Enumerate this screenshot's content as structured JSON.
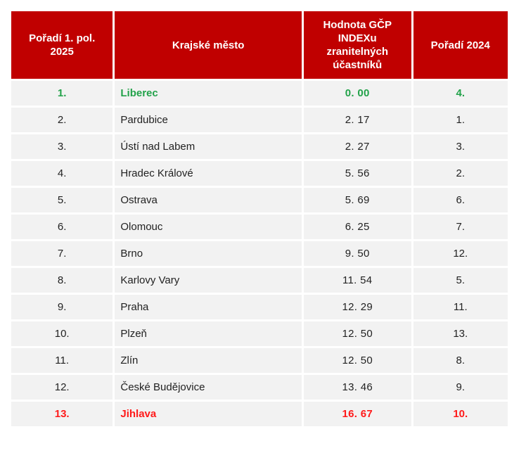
{
  "header": {
    "rank_2025": "Pořadí 1. pol. 2025",
    "city": "Krajské město",
    "index": "Hodnota GČP INDEXu zranitelných účastníků",
    "rank_2024": "Pořadí 2024"
  },
  "rows": [
    {
      "rank": "1.",
      "city": "Liberec",
      "value": "0. 00",
      "rank2024": "4.",
      "highlight": "green"
    },
    {
      "rank": "2.",
      "city": "Pardubice",
      "value": "2. 17",
      "rank2024": "1.",
      "highlight": ""
    },
    {
      "rank": "3.",
      "city": "Ústí nad Labem",
      "value": "2. 27",
      "rank2024": "3.",
      "highlight": ""
    },
    {
      "rank": "4.",
      "city": "Hradec Králové",
      "value": "5. 56",
      "rank2024": "2.",
      "highlight": ""
    },
    {
      "rank": "5.",
      "city": "Ostrava",
      "value": "5. 69",
      "rank2024": "6.",
      "highlight": ""
    },
    {
      "rank": "6.",
      "city": "Olomouc",
      "value": "6. 25",
      "rank2024": "7.",
      "highlight": ""
    },
    {
      "rank": "7.",
      "city": "Brno",
      "value": "9. 50",
      "rank2024": "12.",
      "highlight": ""
    },
    {
      "rank": "8.",
      "city": "Karlovy Vary",
      "value": "11. 54",
      "rank2024": "5.",
      "highlight": ""
    },
    {
      "rank": "9.",
      "city": "Praha",
      "value": "12. 29",
      "rank2024": "11.",
      "highlight": ""
    },
    {
      "rank": "10.",
      "city": "Plzeň",
      "value": "12. 50",
      "rank2024": "13.",
      "highlight": ""
    },
    {
      "rank": "11.",
      "city": "Zlín",
      "value": "12. 50",
      "rank2024": "8.",
      "highlight": ""
    },
    {
      "rank": "12.",
      "city": "České Budějovice",
      "value": "13. 46",
      "rank2024": "9.",
      "highlight": ""
    },
    {
      "rank": "13.",
      "city": "Jihlava",
      "value": "16. 67",
      "rank2024": "10.",
      "highlight": "red"
    }
  ],
  "colors": {
    "header_bg": "#c00000",
    "best": "#22a24a",
    "worst": "#ff1a1a",
    "row_bg": "#f2f2f2"
  }
}
